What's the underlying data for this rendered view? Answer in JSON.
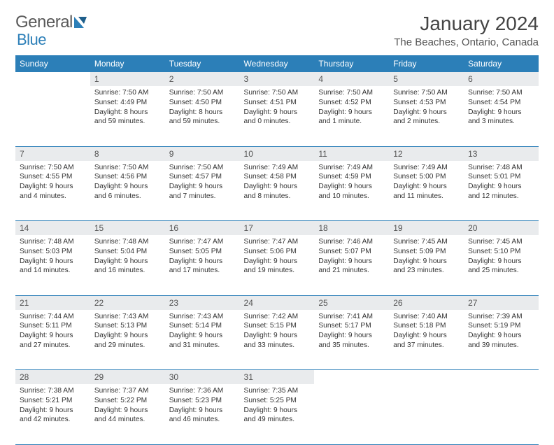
{
  "logo": {
    "word1": "General",
    "word2": "Blue"
  },
  "title": "January 2024",
  "location": "The Beaches, Ontario, Canada",
  "colors": {
    "header_bg": "#2c7fb8",
    "header_text": "#ffffff",
    "daynum_bg": "#e9ebed",
    "border": "#2c7fb8",
    "text": "#333333"
  },
  "weekdays": [
    "Sunday",
    "Monday",
    "Tuesday",
    "Wednesday",
    "Thursday",
    "Friday",
    "Saturday"
  ],
  "weeks": [
    [
      null,
      {
        "n": "1",
        "sunrise": "Sunrise: 7:50 AM",
        "sunset": "Sunset: 4:49 PM",
        "day1": "Daylight: 8 hours",
        "day2": "and 59 minutes."
      },
      {
        "n": "2",
        "sunrise": "Sunrise: 7:50 AM",
        "sunset": "Sunset: 4:50 PM",
        "day1": "Daylight: 8 hours",
        "day2": "and 59 minutes."
      },
      {
        "n": "3",
        "sunrise": "Sunrise: 7:50 AM",
        "sunset": "Sunset: 4:51 PM",
        "day1": "Daylight: 9 hours",
        "day2": "and 0 minutes."
      },
      {
        "n": "4",
        "sunrise": "Sunrise: 7:50 AM",
        "sunset": "Sunset: 4:52 PM",
        "day1": "Daylight: 9 hours",
        "day2": "and 1 minute."
      },
      {
        "n": "5",
        "sunrise": "Sunrise: 7:50 AM",
        "sunset": "Sunset: 4:53 PM",
        "day1": "Daylight: 9 hours",
        "day2": "and 2 minutes."
      },
      {
        "n": "6",
        "sunrise": "Sunrise: 7:50 AM",
        "sunset": "Sunset: 4:54 PM",
        "day1": "Daylight: 9 hours",
        "day2": "and 3 minutes."
      }
    ],
    [
      {
        "n": "7",
        "sunrise": "Sunrise: 7:50 AM",
        "sunset": "Sunset: 4:55 PM",
        "day1": "Daylight: 9 hours",
        "day2": "and 4 minutes."
      },
      {
        "n": "8",
        "sunrise": "Sunrise: 7:50 AM",
        "sunset": "Sunset: 4:56 PM",
        "day1": "Daylight: 9 hours",
        "day2": "and 6 minutes."
      },
      {
        "n": "9",
        "sunrise": "Sunrise: 7:50 AM",
        "sunset": "Sunset: 4:57 PM",
        "day1": "Daylight: 9 hours",
        "day2": "and 7 minutes."
      },
      {
        "n": "10",
        "sunrise": "Sunrise: 7:49 AM",
        "sunset": "Sunset: 4:58 PM",
        "day1": "Daylight: 9 hours",
        "day2": "and 8 minutes."
      },
      {
        "n": "11",
        "sunrise": "Sunrise: 7:49 AM",
        "sunset": "Sunset: 4:59 PM",
        "day1": "Daylight: 9 hours",
        "day2": "and 10 minutes."
      },
      {
        "n": "12",
        "sunrise": "Sunrise: 7:49 AM",
        "sunset": "Sunset: 5:00 PM",
        "day1": "Daylight: 9 hours",
        "day2": "and 11 minutes."
      },
      {
        "n": "13",
        "sunrise": "Sunrise: 7:48 AM",
        "sunset": "Sunset: 5:01 PM",
        "day1": "Daylight: 9 hours",
        "day2": "and 12 minutes."
      }
    ],
    [
      {
        "n": "14",
        "sunrise": "Sunrise: 7:48 AM",
        "sunset": "Sunset: 5:03 PM",
        "day1": "Daylight: 9 hours",
        "day2": "and 14 minutes."
      },
      {
        "n": "15",
        "sunrise": "Sunrise: 7:48 AM",
        "sunset": "Sunset: 5:04 PM",
        "day1": "Daylight: 9 hours",
        "day2": "and 16 minutes."
      },
      {
        "n": "16",
        "sunrise": "Sunrise: 7:47 AM",
        "sunset": "Sunset: 5:05 PM",
        "day1": "Daylight: 9 hours",
        "day2": "and 17 minutes."
      },
      {
        "n": "17",
        "sunrise": "Sunrise: 7:47 AM",
        "sunset": "Sunset: 5:06 PM",
        "day1": "Daylight: 9 hours",
        "day2": "and 19 minutes."
      },
      {
        "n": "18",
        "sunrise": "Sunrise: 7:46 AM",
        "sunset": "Sunset: 5:07 PM",
        "day1": "Daylight: 9 hours",
        "day2": "and 21 minutes."
      },
      {
        "n": "19",
        "sunrise": "Sunrise: 7:45 AM",
        "sunset": "Sunset: 5:09 PM",
        "day1": "Daylight: 9 hours",
        "day2": "and 23 minutes."
      },
      {
        "n": "20",
        "sunrise": "Sunrise: 7:45 AM",
        "sunset": "Sunset: 5:10 PM",
        "day1": "Daylight: 9 hours",
        "day2": "and 25 minutes."
      }
    ],
    [
      {
        "n": "21",
        "sunrise": "Sunrise: 7:44 AM",
        "sunset": "Sunset: 5:11 PM",
        "day1": "Daylight: 9 hours",
        "day2": "and 27 minutes."
      },
      {
        "n": "22",
        "sunrise": "Sunrise: 7:43 AM",
        "sunset": "Sunset: 5:13 PM",
        "day1": "Daylight: 9 hours",
        "day2": "and 29 minutes."
      },
      {
        "n": "23",
        "sunrise": "Sunrise: 7:43 AM",
        "sunset": "Sunset: 5:14 PM",
        "day1": "Daylight: 9 hours",
        "day2": "and 31 minutes."
      },
      {
        "n": "24",
        "sunrise": "Sunrise: 7:42 AM",
        "sunset": "Sunset: 5:15 PM",
        "day1": "Daylight: 9 hours",
        "day2": "and 33 minutes."
      },
      {
        "n": "25",
        "sunrise": "Sunrise: 7:41 AM",
        "sunset": "Sunset: 5:17 PM",
        "day1": "Daylight: 9 hours",
        "day2": "and 35 minutes."
      },
      {
        "n": "26",
        "sunrise": "Sunrise: 7:40 AM",
        "sunset": "Sunset: 5:18 PM",
        "day1": "Daylight: 9 hours",
        "day2": "and 37 minutes."
      },
      {
        "n": "27",
        "sunrise": "Sunrise: 7:39 AM",
        "sunset": "Sunset: 5:19 PM",
        "day1": "Daylight: 9 hours",
        "day2": "and 39 minutes."
      }
    ],
    [
      {
        "n": "28",
        "sunrise": "Sunrise: 7:38 AM",
        "sunset": "Sunset: 5:21 PM",
        "day1": "Daylight: 9 hours",
        "day2": "and 42 minutes."
      },
      {
        "n": "29",
        "sunrise": "Sunrise: 7:37 AM",
        "sunset": "Sunset: 5:22 PM",
        "day1": "Daylight: 9 hours",
        "day2": "and 44 minutes."
      },
      {
        "n": "30",
        "sunrise": "Sunrise: 7:36 AM",
        "sunset": "Sunset: 5:23 PM",
        "day1": "Daylight: 9 hours",
        "day2": "and 46 minutes."
      },
      {
        "n": "31",
        "sunrise": "Sunrise: 7:35 AM",
        "sunset": "Sunset: 5:25 PM",
        "day1": "Daylight: 9 hours",
        "day2": "and 49 minutes."
      },
      null,
      null,
      null
    ]
  ]
}
